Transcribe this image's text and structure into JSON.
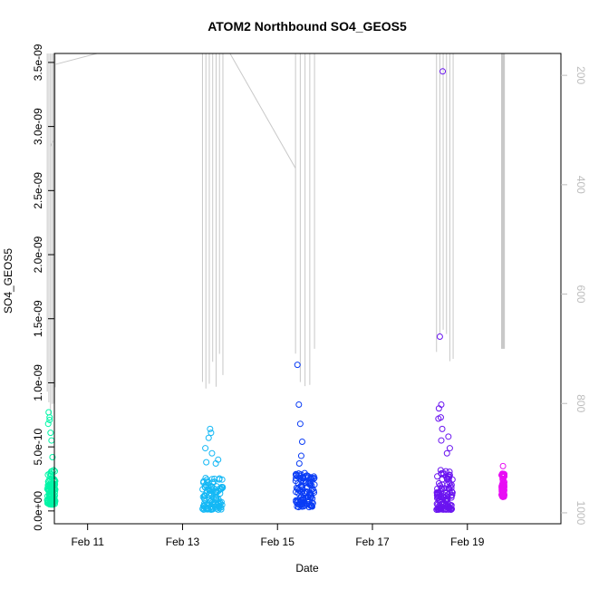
{
  "chart_data": {
    "type": "scatter",
    "title": "ATOM2 Northbound SO4_GEOS5",
    "xlabel": "Date",
    "ylabel": "SO4_GEOS5",
    "x_ticks": [
      "Feb 11",
      "Feb 13",
      "Feb 15",
      "Feb 17",
      "Feb 19"
    ],
    "y_ticks": [
      "0.0e+00",
      "5.0e-10",
      "1.0e-09",
      "1.5e-09",
      "2.0e-09",
      "2.5e-09",
      "3.0e-09",
      "3.5e-09"
    ],
    "y_tick_values": [
      0,
      5e-10,
      1e-09,
      1.5e-09,
      2e-09,
      2.5e-09,
      3e-09,
      3.5e-09
    ],
    "ylim": [
      -1e-10,
      3.57e-09
    ],
    "xlim": [
      10.3,
      20.97
    ],
    "x_unit_note_free": true,
    "right_axis_ticks": [
      "200",
      "400",
      "600",
      "800",
      "1000"
    ],
    "right_axis_values": [
      200,
      400,
      600,
      800,
      1000
    ],
    "right_axis_range": [
      160,
      1020
    ],
    "right_axis_color": "#bdbdbd",
    "pressure_line_color": "#c8c8c8",
    "color_scale": [
      "#00ff99",
      "#00ccff",
      "#0033ff",
      "#6600ff",
      "#ff00ff"
    ],
    "groups": [
      {
        "x_range": [
          10.15,
          10.32
        ],
        "color": "#00f5a6",
        "y_bulk": [
          5e-11,
          3.2e-10
        ],
        "outliers": [
          [
            10.18,
            7.7e-10
          ],
          [
            10.2,
            7.3e-10
          ],
          [
            10.17,
            6.8e-10
          ],
          [
            10.22,
            6.1e-10
          ],
          [
            10.24,
            5.5e-10
          ],
          [
            10.26,
            4.2e-10
          ],
          [
            10.2,
            7.1e-10
          ]
        ]
      },
      {
        "x_range": [
          13.42,
          13.85
        ],
        "color": "#14b8f5",
        "y_bulk": [
          1e-11,
          2.6e-10
        ],
        "outliers": [
          [
            13.58,
            6.4e-10
          ],
          [
            13.6,
            6.1e-10
          ],
          [
            13.55,
            5.7e-10
          ],
          [
            13.48,
            4.9e-10
          ],
          [
            13.62,
            4.5e-10
          ],
          [
            13.5,
            3.8e-10
          ],
          [
            13.75,
            4e-10
          ],
          [
            13.7,
            3.7e-10
          ]
        ]
      },
      {
        "x_range": [
          15.38,
          15.78
        ],
        "color": "#0a3cf5",
        "y_bulk": [
          3e-11,
          3e-10
        ],
        "outliers": [
          [
            15.42,
            1.14e-09
          ],
          [
            15.45,
            8.3e-10
          ],
          [
            15.48,
            6.8e-10
          ],
          [
            15.52,
            5.4e-10
          ],
          [
            15.5,
            4.3e-10
          ],
          [
            15.46,
            3.7e-10
          ]
        ]
      },
      {
        "x_range": [
          18.35,
          18.7
        ],
        "color": "#6a14f0",
        "y_bulk": [
          1e-11,
          3.2e-10
        ],
        "outliers": [
          [
            18.48,
            3.43e-09
          ],
          [
            18.42,
            1.36e-09
          ],
          [
            18.45,
            8.3e-10
          ],
          [
            18.4,
            8e-10
          ],
          [
            18.44,
            7.3e-10
          ],
          [
            18.39,
            7.2e-10
          ],
          [
            18.47,
            6.4e-10
          ],
          [
            18.6,
            5.8e-10
          ],
          [
            18.45,
            5.5e-10
          ],
          [
            18.63,
            4.9e-10
          ],
          [
            18.57,
            4.5e-10
          ]
        ]
      },
      {
        "x_range": [
          19.72,
          19.78
        ],
        "color": "#e80ef5",
        "y_bulk": [
          1.1e-10,
          3e-10
        ],
        "outliers": [
          [
            19.75,
            3.5e-10
          ]
        ]
      }
    ],
    "pressure_segments": [
      {
        "x": [
          10.15,
          10.32
        ],
        "min_p": [
          760,
          820
        ]
      },
      {
        "x": [
          13.42,
          13.85
        ],
        "min_p": [
          690,
          790
        ]
      },
      {
        "x": [
          15.38,
          15.78
        ],
        "min_p": [
          690,
          780
        ]
      },
      {
        "x": [
          18.35,
          18.7
        ],
        "min_p": [
          640,
          730
        ]
      },
      {
        "x": [
          19.72,
          19.78
        ],
        "min_p": [
          700,
          700
        ]
      }
    ],
    "pressure_bridges": [
      [
        [
          10.32,
          180
        ],
        [
          11.2,
          160
        ]
      ],
      [
        [
          10.22,
          330
        ],
        [
          10.27,
          320
        ]
      ],
      [
        [
          13.85,
          160
        ],
        [
          14.1,
          160
        ]
      ],
      [
        [
          14.0,
          160
        ],
        [
          15.38,
          370
        ]
      ],
      [
        [
          15.78,
          160
        ],
        [
          18.35,
          160
        ]
      ],
      [
        [
          18.7,
          160
        ],
        [
          19.72,
          160
        ]
      ]
    ]
  }
}
